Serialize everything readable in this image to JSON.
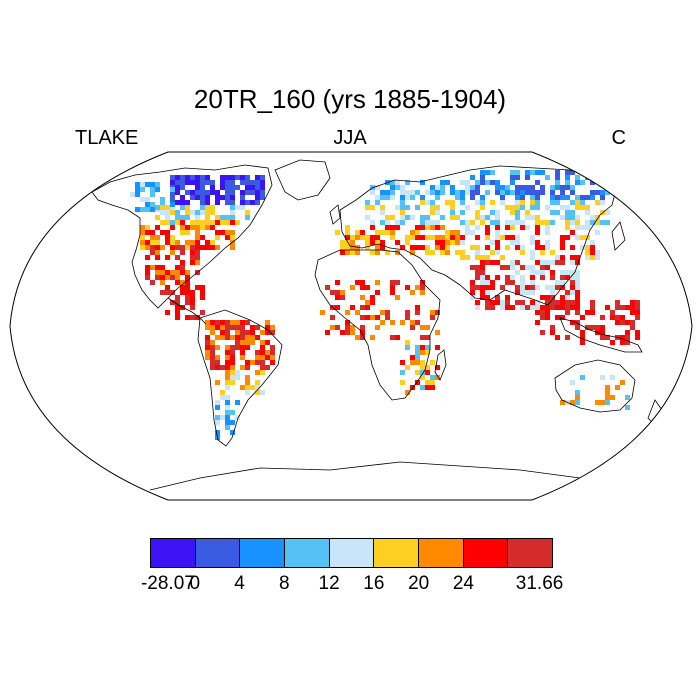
{
  "title": "20TR_160 (yrs 1885-1904)",
  "label_left": "TLAKE",
  "label_center": "JJA",
  "label_right": "C",
  "colorbar": {
    "colors": [
      "#3d12f5",
      "#3a5be0",
      "#1991ff",
      "#55c2f5",
      "#c8e6f8",
      "#ffd021",
      "#ff8a00",
      "#ff0000",
      "#d62b2b"
    ],
    "tick_labels": [
      "-28.07",
      "0",
      "4",
      "8",
      "12",
      "16",
      "20",
      "24",
      "31.66"
    ]
  },
  "chart_data": {
    "type": "heatmap",
    "variable": "TLAKE",
    "season": "JJA",
    "units": "C",
    "range": [
      -28.07,
      31.66
    ],
    "levels": [
      0,
      4,
      8,
      12,
      16,
      20,
      24
    ]
  }
}
